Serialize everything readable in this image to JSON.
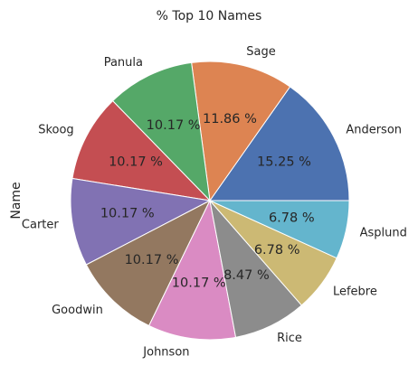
{
  "chart_data": {
    "type": "pie",
    "title": "% Top 10 Names",
    "ylabel": "Name",
    "categories": [
      "Anderson",
      "Sage",
      "Panula",
      "Skoog",
      "Carter",
      "Goodwin",
      "Johnson",
      "Rice",
      "Lefebre",
      "Asplund"
    ],
    "values": [
      15.25,
      11.86,
      10.17,
      10.17,
      10.17,
      10.17,
      10.17,
      8.47,
      6.78,
      6.78
    ],
    "value_labels": [
      "15.25 %",
      "11.86 %",
      "10.17 %",
      "10.17 %",
      "10.17 %",
      "10.17 %",
      "10.17 %",
      "8.47 %",
      "6.78 %",
      "6.78 %"
    ],
    "colors": [
      "#4c72b0",
      "#dd8452",
      "#55a868",
      "#c44e52",
      "#8172b3",
      "#937860",
      "#da8bc3",
      "#8c8c8c",
      "#ccb974",
      "#64b5cd"
    ],
    "start_angle_deg": 0,
    "direction": "counterclockwise"
  }
}
